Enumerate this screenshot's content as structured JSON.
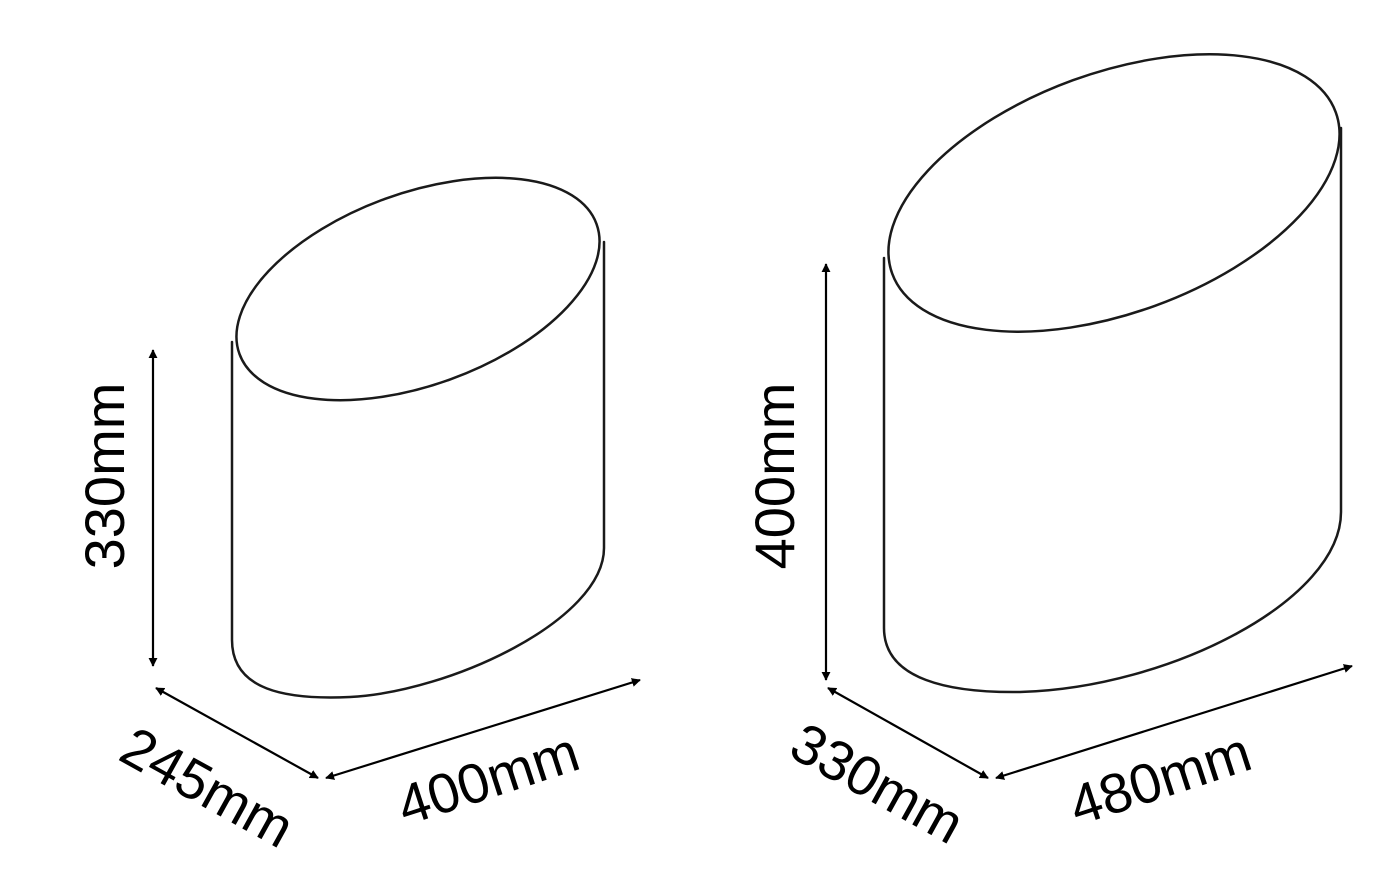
{
  "small": {
    "height_label": "330mm",
    "depth_label": "245mm",
    "width_label": "400mm"
  },
  "large": {
    "height_label": "400mm",
    "depth_label": "330mm",
    "width_label": "480mm"
  }
}
